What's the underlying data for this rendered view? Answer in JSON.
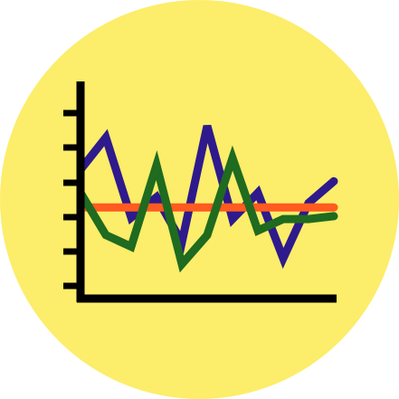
{
  "icon": {
    "name": "line-chart-icon",
    "colors": {
      "background_circle": "#FCED6A",
      "axis": "#000000",
      "series_purple": "#2E1A8C",
      "series_green": "#1F6B1F",
      "series_orange": "#FF5A1F"
    }
  },
  "chart_data": {
    "type": "line",
    "title": "",
    "xlabel": "",
    "ylabel": "",
    "ylim": [
      0,
      7
    ],
    "ytick_count": 7,
    "grid": false,
    "series": [
      {
        "color": "#2E1A8C",
        "x": [
          0,
          1,
          2,
          3,
          4,
          5,
          6,
          7,
          8,
          9,
          10
        ],
        "y": [
          4.0,
          5.1,
          2.35,
          3.05,
          1.5,
          5.5,
          2.3,
          3.2,
          0.95,
          2.85,
          3.6
        ]
      },
      {
        "color": "#1F6B1F",
        "x": [
          0,
          1,
          2,
          3,
          4,
          5,
          6,
          7,
          8,
          9,
          10
        ],
        "y": [
          3.2,
          1.75,
          1.35,
          4.15,
          0.75,
          1.75,
          4.4,
          1.9,
          2.3,
          2.3,
          2.4
        ]
      },
      {
        "color": "#FF5A1F",
        "x": [
          0,
          10
        ],
        "y": [
          2.7,
          2.7
        ]
      }
    ]
  }
}
